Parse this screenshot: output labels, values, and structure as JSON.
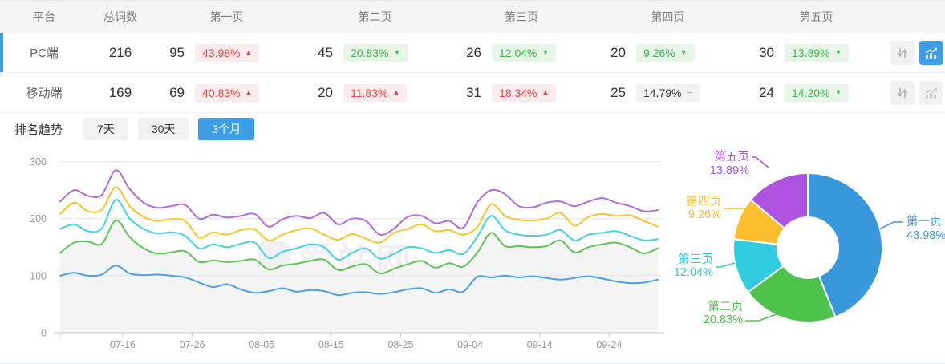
{
  "colors": {
    "accent_blue": "#3d9ee6",
    "badge_up_text": "#f04142",
    "badge_down_text": "#3cb54a",
    "selected_row_bar": "#3d9ee6",
    "axis_text": "#999999"
  },
  "table": {
    "columns": [
      "平台",
      "总词数",
      "第一页",
      "第二页",
      "第三页",
      "第四页",
      "第五页"
    ],
    "trend_glyphs": {
      "up": "▲",
      "down": "▼",
      "flat": "−"
    },
    "rows": [
      {
        "platform": "PC端",
        "total": "216",
        "selected": true,
        "pages": [
          {
            "count": "95",
            "pct": "43.98%",
            "trend": "up"
          },
          {
            "count": "45",
            "pct": "20.83%",
            "trend": "down"
          },
          {
            "count": "26",
            "pct": "12.04%",
            "trend": "down"
          },
          {
            "count": "20",
            "pct": "9.26%",
            "trend": "down"
          },
          {
            "count": "30",
            "pct": "13.89%",
            "trend": "down"
          }
        ],
        "sort_icon": "up-down-arrows",
        "chart_icon": "trend-chart",
        "chart_active": true
      },
      {
        "platform": "移动端",
        "total": "169",
        "selected": false,
        "pages": [
          {
            "count": "69",
            "pct": "40.83%",
            "trend": "up"
          },
          {
            "count": "20",
            "pct": "11.83%",
            "trend": "up"
          },
          {
            "count": "31",
            "pct": "18.34%",
            "trend": "up"
          },
          {
            "count": "25",
            "pct": "14.79%",
            "trend": "flat"
          },
          {
            "count": "24",
            "pct": "14.20%",
            "trend": "down"
          }
        ],
        "sort_icon": "up-down-arrows",
        "chart_icon": "trend-chart",
        "chart_active": false
      }
    ]
  },
  "toolbar": {
    "label": "排名趋势",
    "tabs": [
      {
        "label": "7天",
        "active": false
      },
      {
        "label": "30天",
        "active": false
      },
      {
        "label": "3个月",
        "active": true
      }
    ]
  },
  "watermark": {
    "text": "爱站网"
  },
  "chart_data": [
    {
      "type": "line",
      "title": "排名趋势 (3个月)",
      "x_ticks": [
        "07-16",
        "07-26",
        "08-05",
        "08-15",
        "08-25",
        "09-04",
        "09-14",
        "09-24"
      ],
      "x_tick_days": [
        9,
        19,
        29,
        39,
        49,
        59,
        69,
        79
      ],
      "day_span": 86,
      "point_step_days": 2,
      "ylim": [
        0,
        300
      ],
      "y_ticks": [
        0,
        100,
        200,
        300
      ],
      "grid": true,
      "legend_position": "none",
      "note_series_are_cumulative_counts": true,
      "series": [
        {
          "name": "第一页",
          "color": "#4d9fe8",
          "fill": false,
          "values": [
            100,
            105,
            100,
            102,
            118,
            104,
            101,
            102,
            100,
            97,
            88,
            80,
            85,
            76,
            70,
            73,
            78,
            72,
            75,
            73,
            66,
            70,
            71,
            68,
            71,
            76,
            78,
            70,
            76,
            72,
            98,
            97,
            100,
            97,
            99,
            96,
            93,
            96,
            99,
            95,
            90,
            87,
            88,
            93
          ]
        },
        {
          "name": "第二页",
          "color": "#5ec453",
          "fill": true,
          "fill_color": "#f4f4f4",
          "values": [
            140,
            158,
            160,
            156,
            197,
            168,
            148,
            139,
            141,
            143,
            124,
            127,
            124,
            126,
            128,
            111,
            118,
            121,
            126,
            128,
            110,
            116,
            120,
            104,
            112,
            120,
            126,
            114,
            122,
            116,
            140,
            175,
            152,
            152,
            150,
            152,
            162,
            141,
            150,
            155,
            158,
            150,
            139,
            148
          ]
        },
        {
          "name": "第三页",
          "color": "#45d1e6",
          "fill": false,
          "values": [
            182,
            190,
            178,
            183,
            233,
            200,
            182,
            174,
            176,
            170,
            148,
            155,
            150,
            156,
            158,
            131,
            142,
            148,
            155,
            150,
            128,
            140,
            148,
            130,
            138,
            150,
            148,
            140,
            145,
            138,
            168,
            205,
            180,
            172,
            170,
            172,
            180,
            162,
            172,
            175,
            178,
            170,
            162,
            164
          ]
        },
        {
          "name": "第四页",
          "color": "#fbc32f",
          "fill": false,
          "values": [
            208,
            228,
            213,
            216,
            255,
            222,
            203,
            196,
            199,
            196,
            167,
            176,
            172,
            180,
            181,
            162,
            172,
            180,
            183,
            172,
            163,
            173,
            165,
            158,
            175,
            182,
            190,
            178,
            180,
            172,
            185,
            225,
            205,
            198,
            197,
            200,
            210,
            188,
            203,
            208,
            205,
            206,
            196,
            186
          ]
        },
        {
          "name": "第五页",
          "color": "#b36ae2",
          "fill": false,
          "values": [
            230,
            250,
            240,
            242,
            285,
            252,
            228,
            219,
            222,
            224,
            200,
            207,
            202,
            205,
            208,
            186,
            199,
            205,
            201,
            210,
            190,
            200,
            196,
            172,
            182,
            203,
            205,
            192,
            196,
            184,
            228,
            250,
            243,
            222,
            220,
            228,
            230,
            222,
            230,
            236,
            228,
            222,
            213,
            215
          ]
        }
      ]
    },
    {
      "type": "pie",
      "donut": true,
      "start_angle_deg": 0,
      "direction": "clockwise",
      "slices": [
        {
          "label": "第一页",
          "value": 43.98,
          "pct_label": "43.98%",
          "color": "#3898db"
        },
        {
          "label": "第二页",
          "value": 20.83,
          "pct_label": "20.83%",
          "color": "#4cc34b"
        },
        {
          "label": "第三页",
          "value": 12.04,
          "pct_label": "12.04%",
          "color": "#30cbdf"
        },
        {
          "label": "第四页",
          "value": 9.26,
          "pct_label": "9.26%",
          "color": "#fcbe2b"
        },
        {
          "label": "第五页",
          "value": 13.89,
          "pct_label": "13.89%",
          "color": "#ae53df"
        }
      ]
    }
  ]
}
